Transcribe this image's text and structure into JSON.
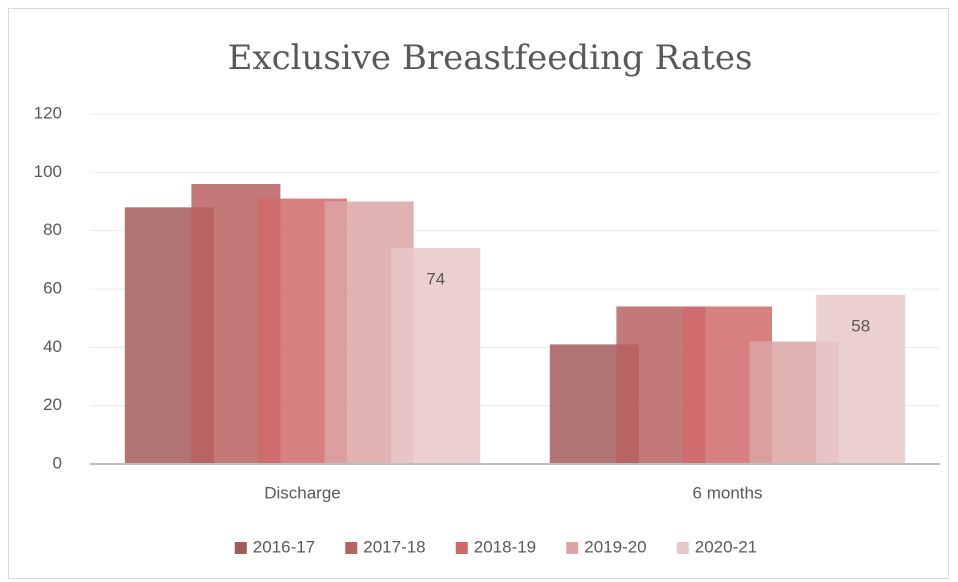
{
  "chart_data": {
    "type": "bar",
    "title": "Exclusive Breastfeeding Rates",
    "categories": [
      "Discharge",
      "6 months"
    ],
    "series": [
      {
        "name": "2016-17",
        "color": "#a35a5a",
        "values": [
          88,
          41
        ]
      },
      {
        "name": "2017-18",
        "color": "#b9625f",
        "values": [
          96,
          54
        ]
      },
      {
        "name": "2018-19",
        "color": "#d06a6a",
        "values": [
          91,
          54
        ]
      },
      {
        "name": "2019-20",
        "color": "#dca4a4",
        "values": [
          90,
          42
        ]
      },
      {
        "name": "2020-21",
        "color": "#e9c7c7",
        "values": [
          74,
          58
        ],
        "data_labels": true
      }
    ],
    "ylim": [
      0,
      120
    ],
    "yticks": [
      0,
      20,
      40,
      60,
      80,
      100,
      120
    ],
    "grid": true,
    "legend": "bottom"
  }
}
